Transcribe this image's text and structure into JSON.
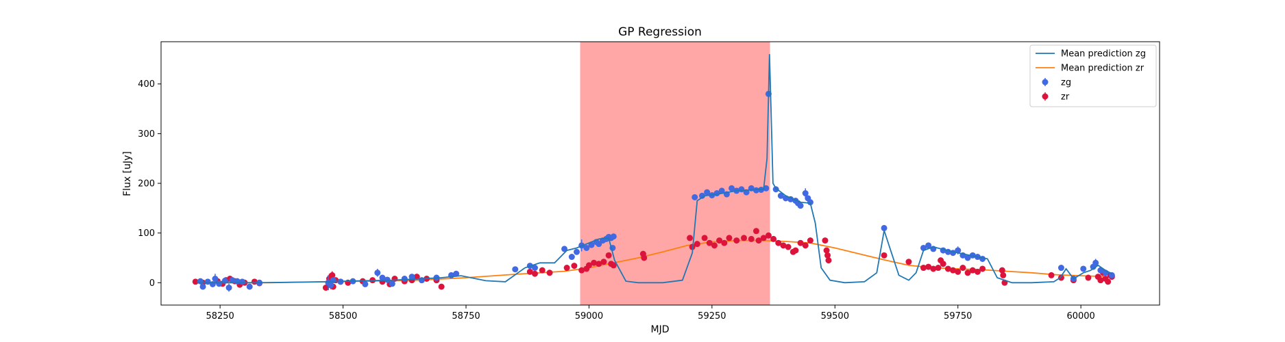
{
  "chart_data": {
    "type": "scatter",
    "title": "GP Regression",
    "xlabel": "MJD",
    "ylabel": "Flux [uJy]",
    "xlim": [
      58130,
      60160
    ],
    "ylim": [
      -45,
      485
    ],
    "x_ticks": [
      58250,
      58500,
      58750,
      59000,
      59250,
      59500,
      59750,
      60000
    ],
    "y_ticks": [
      0,
      100,
      200,
      300,
      400
    ],
    "shaded_region": {
      "x_range": [
        58982,
        59368
      ],
      "color": "#ffa6a6"
    },
    "legend": {
      "position": "upper right",
      "entries": [
        {
          "label": "Mean prediction zg",
          "kind": "line",
          "color": "#1f77b4"
        },
        {
          "label": "Mean prediction zr",
          "kind": "line",
          "color": "#ff7f0e"
        },
        {
          "label": "zg",
          "kind": "marker",
          "color": "#4169e1"
        },
        {
          "label": "zr",
          "kind": "marker",
          "color": "#dc143c"
        }
      ]
    },
    "series": [
      {
        "name": "Mean prediction zg",
        "kind": "line",
        "color": "#1f77b4",
        "x": [
          58203,
          58330,
          58470,
          58500,
          58600,
          58700,
          58740,
          58790,
          58830,
          58870,
          58900,
          58930,
          58955,
          58975,
          59000,
          59020,
          59040,
          59052,
          59075,
          59100,
          59150,
          59190,
          59210,
          59220,
          59235,
          59260,
          59300,
          59330,
          59355,
          59362,
          59367,
          59370,
          59374,
          59380,
          59400,
          59430,
          59450,
          59460,
          59472,
          59490,
          59520,
          59560,
          59585,
          59600,
          59615,
          59630,
          59650,
          59665,
          59680,
          59700,
          59740,
          59790,
          59810,
          59830,
          59860,
          59900,
          59945,
          59958,
          59970,
          59985,
          60005,
          60020,
          60035,
          60050,
          60063
        ],
        "y": [
          0,
          0,
          2,
          3,
          5,
          10,
          14,
          4,
          2,
          30,
          40,
          40,
          65,
          70,
          80,
          88,
          90,
          45,
          3,
          0,
          0,
          5,
          60,
          165,
          175,
          178,
          185,
          187,
          188,
          250,
          460,
          350,
          200,
          190,
          175,
          162,
          160,
          120,
          30,
          5,
          0,
          2,
          20,
          105,
          60,
          15,
          5,
          20,
          65,
          72,
          62,
          52,
          48,
          10,
          0,
          0,
          2,
          10,
          28,
          8,
          20,
          25,
          35,
          25,
          18
        ]
      },
      {
        "name": "Mean prediction zr",
        "kind": "line",
        "color": "#ff7f0e",
        "x": [
          58203,
          58350,
          58470,
          58550,
          58650,
          58750,
          58850,
          58950,
          59000,
          59050,
          59100,
          59150,
          59200,
          59250,
          59300,
          59350,
          59400,
          59450,
          59500,
          59550,
          59600,
          59650,
          59700,
          59750,
          59800,
          59850,
          59900,
          59950,
          60000,
          60063
        ],
        "y": [
          0,
          0,
          2,
          3,
          5,
          10,
          17,
          23,
          30,
          40,
          50,
          62,
          75,
          82,
          85,
          85,
          83,
          80,
          70,
          58,
          46,
          35,
          30,
          28,
          26,
          23,
          20,
          16,
          14,
          12
        ]
      },
      {
        "name": "zg",
        "kind": "errorbar",
        "color": "#4169e1",
        "points": [
          [
            58210,
            3,
            4
          ],
          [
            58215,
            -8,
            5
          ],
          [
            58225,
            2,
            4
          ],
          [
            58235,
            -3,
            5
          ],
          [
            58240,
            8,
            10
          ],
          [
            58248,
            -2,
            6
          ],
          [
            58260,
            4,
            5
          ],
          [
            58268,
            -10,
            8
          ],
          [
            58275,
            5,
            5
          ],
          [
            58285,
            3,
            6
          ],
          [
            58295,
            2,
            4
          ],
          [
            58310,
            -8,
            5
          ],
          [
            58330,
            0,
            4
          ],
          [
            58470,
            0,
            15
          ],
          [
            58475,
            -5,
            6
          ],
          [
            58480,
            5,
            5
          ],
          [
            58495,
            2,
            4
          ],
          [
            58520,
            3,
            4
          ],
          [
            58545,
            -3,
            5
          ],
          [
            58570,
            20,
            8
          ],
          [
            58580,
            10,
            5
          ],
          [
            58590,
            6,
            5
          ],
          [
            58600,
            -2,
            4
          ],
          [
            58625,
            8,
            5
          ],
          [
            58640,
            12,
            5
          ],
          [
            58660,
            5,
            4
          ],
          [
            58690,
            10,
            5
          ],
          [
            58720,
            15,
            5
          ],
          [
            58730,
            18,
            4
          ],
          [
            58850,
            27,
            4
          ],
          [
            58880,
            34,
            4
          ],
          [
            58890,
            30,
            4
          ],
          [
            58950,
            68,
            5
          ],
          [
            58965,
            52,
            4
          ],
          [
            58975,
            62,
            5
          ],
          [
            58985,
            75,
            12
          ],
          [
            58995,
            70,
            5
          ],
          [
            59005,
            76,
            4
          ],
          [
            59015,
            82,
            5
          ],
          [
            59020,
            78,
            4
          ],
          [
            59028,
            85,
            4
          ],
          [
            59035,
            88,
            5
          ],
          [
            59040,
            92,
            4
          ],
          [
            59045,
            90,
            5
          ],
          [
            59048,
            70,
            5
          ],
          [
            59050,
            93,
            4
          ],
          [
            59215,
            172,
            6
          ],
          [
            59230,
            175,
            5
          ],
          [
            59240,
            182,
            5
          ],
          [
            59250,
            176,
            4
          ],
          [
            59260,
            180,
            5
          ],
          [
            59270,
            185,
            5
          ],
          [
            59280,
            178,
            4
          ],
          [
            59290,
            190,
            5
          ],
          [
            59300,
            185,
            5
          ],
          [
            59310,
            188,
            5
          ],
          [
            59320,
            182,
            5
          ],
          [
            59330,
            190,
            5
          ],
          [
            59340,
            186,
            5
          ],
          [
            59350,
            187,
            5
          ],
          [
            59360,
            190,
            5
          ],
          [
            59365,
            380,
            8
          ],
          [
            59380,
            188,
            5
          ],
          [
            59390,
            175,
            5
          ],
          [
            59400,
            170,
            5
          ],
          [
            59410,
            168,
            5
          ],
          [
            59420,
            165,
            5
          ],
          [
            59425,
            160,
            4
          ],
          [
            59430,
            155,
            5
          ],
          [
            59440,
            180,
            10
          ],
          [
            59445,
            170,
            5
          ],
          [
            59450,
            162,
            4
          ],
          [
            59600,
            110,
            5
          ],
          [
            59680,
            70,
            5
          ],
          [
            59690,
            75,
            5
          ],
          [
            59700,
            68,
            5
          ],
          [
            59720,
            65,
            5
          ],
          [
            59730,
            62,
            4
          ],
          [
            59740,
            60,
            5
          ],
          [
            59750,
            65,
            8
          ],
          [
            59760,
            55,
            4
          ],
          [
            59770,
            50,
            4
          ],
          [
            59780,
            55,
            4
          ],
          [
            59790,
            52,
            4
          ],
          [
            59800,
            48,
            4
          ],
          [
            59960,
            30,
            4
          ],
          [
            59985,
            8,
            4
          ],
          [
            60005,
            28,
            5
          ],
          [
            60025,
            32,
            5
          ],
          [
            60030,
            40,
            8
          ],
          [
            60040,
            25,
            5
          ],
          [
            60050,
            20,
            5
          ],
          [
            60063,
            15,
            4
          ]
        ]
      },
      {
        "name": "zr",
        "kind": "errorbar",
        "color": "#dc143c",
        "points": [
          [
            58200,
            2,
            4
          ],
          [
            58215,
            0,
            4
          ],
          [
            58245,
            3,
            4
          ],
          [
            58255,
            -2,
            4
          ],
          [
            58262,
            5,
            5
          ],
          [
            58270,
            8,
            6
          ],
          [
            58280,
            3,
            5
          ],
          [
            58290,
            -4,
            5
          ],
          [
            58300,
            0,
            4
          ],
          [
            58320,
            2,
            4
          ],
          [
            58330,
            -1,
            4
          ],
          [
            58465,
            -10,
            6
          ],
          [
            58470,
            0,
            15
          ],
          [
            58472,
            8,
            10
          ],
          [
            58475,
            -5,
            8
          ],
          [
            58478,
            15,
            8
          ],
          [
            58480,
            -8,
            6
          ],
          [
            58485,
            5,
            5
          ],
          [
            58495,
            2,
            4
          ],
          [
            58510,
            0,
            6
          ],
          [
            58540,
            3,
            5
          ],
          [
            58560,
            5,
            4
          ],
          [
            58580,
            2,
            4
          ],
          [
            58595,
            -3,
            4
          ],
          [
            58605,
            8,
            5
          ],
          [
            58625,
            3,
            4
          ],
          [
            58640,
            5,
            4
          ],
          [
            58650,
            12,
            6
          ],
          [
            58670,
            8,
            5
          ],
          [
            58690,
            5,
            4
          ],
          [
            58700,
            -8,
            5
          ],
          [
            58880,
            22,
            4
          ],
          [
            58890,
            18,
            4
          ],
          [
            58905,
            25,
            4
          ],
          [
            58920,
            20,
            4
          ],
          [
            58955,
            30,
            4
          ],
          [
            58970,
            34,
            4
          ],
          [
            58985,
            25,
            4
          ],
          [
            58995,
            28,
            4
          ],
          [
            59000,
            35,
            4
          ],
          [
            59010,
            40,
            4
          ],
          [
            59020,
            38,
            4
          ],
          [
            59030,
            42,
            4
          ],
          [
            59040,
            55,
            6
          ],
          [
            59045,
            38,
            4
          ],
          [
            59050,
            35,
            4
          ],
          [
            59110,
            58,
            5
          ],
          [
            59112,
            50,
            4
          ],
          [
            59205,
            90,
            6
          ],
          [
            59210,
            72,
            4
          ],
          [
            59220,
            78,
            4
          ],
          [
            59235,
            90,
            5
          ],
          [
            59245,
            80,
            4
          ],
          [
            59255,
            75,
            4
          ],
          [
            59265,
            85,
            5
          ],
          [
            59275,
            80,
            4
          ],
          [
            59285,
            90,
            5
          ],
          [
            59300,
            85,
            4
          ],
          [
            59315,
            90,
            5
          ],
          [
            59330,
            88,
            4
          ],
          [
            59340,
            104,
            5
          ],
          [
            59345,
            85,
            4
          ],
          [
            59355,
            90,
            4
          ],
          [
            59365,
            95,
            5
          ],
          [
            59375,
            88,
            4
          ],
          [
            59385,
            80,
            4
          ],
          [
            59395,
            75,
            4
          ],
          [
            59405,
            72,
            4
          ],
          [
            59415,
            62,
            4
          ],
          [
            59420,
            65,
            4
          ],
          [
            59430,
            80,
            4
          ],
          [
            59440,
            75,
            4
          ],
          [
            59450,
            85,
            6
          ],
          [
            59480,
            85,
            5
          ],
          [
            59483,
            65,
            5
          ],
          [
            59485,
            55,
            5
          ],
          [
            59487,
            45,
            4
          ],
          [
            59600,
            55,
            4
          ],
          [
            59650,
            42,
            4
          ],
          [
            59680,
            30,
            4
          ],
          [
            59690,
            32,
            4
          ],
          [
            59700,
            28,
            4
          ],
          [
            59710,
            30,
            4
          ],
          [
            59715,
            45,
            4
          ],
          [
            59720,
            38,
            4
          ],
          [
            59730,
            28,
            4
          ],
          [
            59740,
            25,
            4
          ],
          [
            59750,
            22,
            4
          ],
          [
            59760,
            30,
            4
          ],
          [
            59770,
            20,
            4
          ],
          [
            59780,
            25,
            4
          ],
          [
            59790,
            22,
            4
          ],
          [
            59800,
            28,
            4
          ],
          [
            59840,
            25,
            5
          ],
          [
            59842,
            15,
            5
          ],
          [
            59845,
            0,
            4
          ],
          [
            59940,
            15,
            4
          ],
          [
            59960,
            10,
            4
          ],
          [
            59985,
            5,
            4
          ],
          [
            60015,
            10,
            4
          ],
          [
            60035,
            12,
            4
          ],
          [
            60040,
            5,
            4
          ],
          [
            60045,
            20,
            4
          ],
          [
            60050,
            8,
            4
          ],
          [
            60055,
            2,
            5
          ],
          [
            60060,
            15,
            5
          ],
          [
            60063,
            12,
            4
          ]
        ]
      }
    ]
  }
}
